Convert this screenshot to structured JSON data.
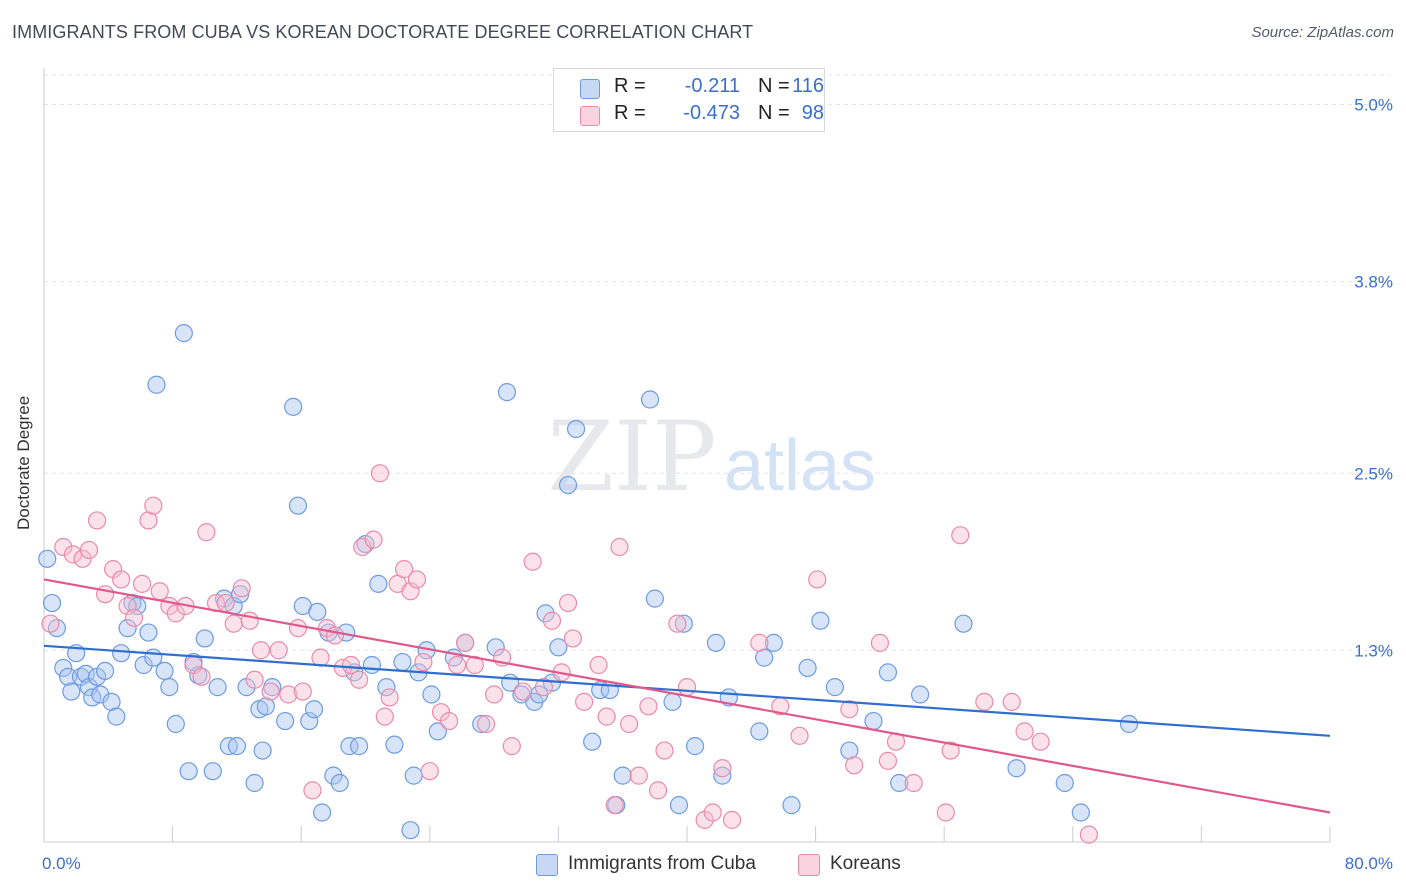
{
  "title": "IMMIGRANTS FROM CUBA VS KOREAN DOCTORATE DEGREE CORRELATION CHART",
  "source": "Source: ZipAtlas.com",
  "watermark": {
    "zip": "ZIP",
    "atlas": "atlas"
  },
  "legend": {
    "rows": [
      {
        "r_label": "R =",
        "r_value": "-0.211",
        "n_label": "N =",
        "n_value": "116",
        "color": "#a9c4f0",
        "edge": "#6d9be0"
      },
      {
        "r_label": "R =",
        "r_value": "-0.473",
        "n_label": "N =",
        "n_value": "98",
        "color": "#f6bfd0",
        "edge": "#e98aaa"
      }
    ]
  },
  "bottom_legend": [
    "Immigrants from Cuba",
    "Koreans"
  ],
  "chart_data": {
    "type": "scatter",
    "xlabel": "",
    "ylabel": "Doctorate Degree",
    "xlim": [
      0,
      80
    ],
    "ylim": [
      0,
      5.2
    ],
    "x_tick_labels": [
      "0.0%",
      "80.0%"
    ],
    "y_ticks": [
      1.3,
      2.5,
      3.8,
      5.0
    ],
    "y_tick_labels": [
      "1.3%",
      "2.5%",
      "3.8%",
      "5.0%"
    ],
    "grid": "horizontal dashed",
    "legend_placement": "top-center",
    "series": [
      {
        "name": "Immigrants from Cuba",
        "color": "#6d9be0",
        "fill": "#a9c4f0",
        "trend_color": "#2f6fce",
        "trend": {
          "x0": 0,
          "y0": 1.33,
          "x1": 80,
          "y1": 0.72
        },
        "points": [
          [
            0.2,
            1.92
          ],
          [
            0.5,
            1.62
          ],
          [
            0.8,
            1.45
          ],
          [
            1.2,
            1.18
          ],
          [
            1.5,
            1.12
          ],
          [
            1.7,
            1.02
          ],
          [
            2.0,
            1.28
          ],
          [
            2.3,
            1.12
          ],
          [
            2.6,
            1.14
          ],
          [
            2.8,
            1.05
          ],
          [
            3.0,
            0.98
          ],
          [
            3.3,
            1.12
          ],
          [
            3.5,
            1.0
          ],
          [
            3.8,
            1.16
          ],
          [
            4.2,
            0.95
          ],
          [
            4.5,
            0.85
          ],
          [
            4.8,
            1.28
          ],
          [
            5.2,
            1.45
          ],
          [
            5.5,
            1.62
          ],
          [
            5.8,
            1.6
          ],
          [
            6.2,
            1.2
          ],
          [
            6.5,
            1.42
          ],
          [
            6.8,
            1.25
          ],
          [
            7.0,
            3.1
          ],
          [
            7.5,
            1.16
          ],
          [
            7.8,
            1.05
          ],
          [
            8.2,
            0.8
          ],
          [
            8.7,
            3.45
          ],
          [
            9.0,
            0.48
          ],
          [
            9.3,
            1.22
          ],
          [
            9.6,
            1.13
          ],
          [
            10.0,
            1.38
          ],
          [
            10.5,
            0.48
          ],
          [
            10.8,
            1.05
          ],
          [
            11.2,
            1.65
          ],
          [
            11.5,
            0.65
          ],
          [
            11.8,
            1.6
          ],
          [
            12.2,
            1.68
          ],
          [
            12.0,
            0.65
          ],
          [
            12.6,
            1.05
          ],
          [
            13.1,
            0.4
          ],
          [
            13.4,
            0.9
          ],
          [
            13.6,
            0.62
          ],
          [
            13.8,
            0.92
          ],
          [
            14.2,
            1.05
          ],
          [
            15.0,
            0.82
          ],
          [
            15.5,
            2.95
          ],
          [
            15.8,
            2.28
          ],
          [
            16.1,
            1.6
          ],
          [
            16.5,
            0.82
          ],
          [
            16.8,
            0.9
          ],
          [
            17.0,
            1.56
          ],
          [
            17.3,
            0.2
          ],
          [
            17.7,
            1.42
          ],
          [
            18.0,
            0.45
          ],
          [
            18.4,
            0.4
          ],
          [
            18.8,
            1.42
          ],
          [
            19.0,
            0.65
          ],
          [
            19.3,
            1.15
          ],
          [
            19.6,
            0.65
          ],
          [
            20.0,
            2.02
          ],
          [
            20.4,
            1.2
          ],
          [
            20.8,
            1.75
          ],
          [
            21.3,
            1.05
          ],
          [
            21.8,
            0.66
          ],
          [
            22.3,
            1.22
          ],
          [
            22.8,
            0.08
          ],
          [
            23.0,
            0.45
          ],
          [
            23.3,
            1.15
          ],
          [
            23.8,
            1.3
          ],
          [
            24.1,
            1.0
          ],
          [
            24.5,
            0.75
          ],
          [
            25.5,
            1.25
          ],
          [
            26.2,
            1.35
          ],
          [
            27.2,
            0.8
          ],
          [
            28.1,
            1.32
          ],
          [
            28.8,
            3.05
          ],
          [
            29.0,
            1.08
          ],
          [
            29.7,
            1.0
          ],
          [
            30.5,
            0.95
          ],
          [
            30.8,
            1.0
          ],
          [
            31.2,
            1.55
          ],
          [
            31.6,
            1.08
          ],
          [
            32.0,
            1.32
          ],
          [
            32.6,
            2.42
          ],
          [
            33.1,
            2.8
          ],
          [
            34.1,
            0.68
          ],
          [
            34.6,
            1.03
          ],
          [
            35.2,
            1.03
          ],
          [
            35.6,
            0.25
          ],
          [
            36.0,
            0.45
          ],
          [
            37.7,
            3.0
          ],
          [
            38.0,
            1.65
          ],
          [
            39.1,
            0.95
          ],
          [
            39.5,
            0.25
          ],
          [
            39.8,
            1.48
          ],
          [
            40.5,
            0.65
          ],
          [
            41.8,
            1.35
          ],
          [
            42.2,
            0.45
          ],
          [
            42.6,
            0.98
          ],
          [
            44.5,
            0.75
          ],
          [
            44.8,
            1.25
          ],
          [
            45.4,
            1.35
          ],
          [
            46.5,
            0.25
          ],
          [
            47.5,
            1.18
          ],
          [
            48.3,
            1.5
          ],
          [
            49.2,
            1.05
          ],
          [
            50.1,
            0.62
          ],
          [
            51.6,
            0.82
          ],
          [
            52.5,
            1.15
          ],
          [
            53.2,
            0.4
          ],
          [
            54.5,
            1.0
          ],
          [
            57.2,
            1.48
          ],
          [
            60.5,
            0.5
          ],
          [
            63.5,
            0.4
          ],
          [
            64.5,
            0.2
          ],
          [
            67.5,
            0.8
          ]
        ]
      },
      {
        "name": "Koreans",
        "color": "#e98aaa",
        "fill": "#f6bfd0",
        "trend_color": "#e0598a",
        "trend": {
          "x0": 0,
          "y0": 1.78,
          "x1": 80,
          "y1": 0.2
        },
        "points": [
          [
            0.4,
            1.48
          ],
          [
            1.2,
            2.0
          ],
          [
            1.8,
            1.95
          ],
          [
            2.4,
            1.92
          ],
          [
            2.8,
            1.98
          ],
          [
            3.3,
            2.18
          ],
          [
            3.8,
            1.68
          ],
          [
            4.3,
            1.85
          ],
          [
            4.8,
            1.78
          ],
          [
            5.2,
            1.6
          ],
          [
            5.6,
            1.52
          ],
          [
            6.1,
            1.75
          ],
          [
            6.5,
            2.18
          ],
          [
            6.8,
            2.28
          ],
          [
            7.2,
            1.7
          ],
          [
            7.8,
            1.6
          ],
          [
            8.2,
            1.55
          ],
          [
            8.8,
            1.6
          ],
          [
            9.3,
            1.2
          ],
          [
            9.8,
            1.12
          ],
          [
            10.1,
            2.1
          ],
          [
            10.7,
            1.62
          ],
          [
            11.3,
            1.62
          ],
          [
            11.8,
            1.48
          ],
          [
            12.3,
            1.72
          ],
          [
            12.8,
            1.5
          ],
          [
            13.1,
            1.1
          ],
          [
            13.5,
            1.3
          ],
          [
            14.1,
            1.02
          ],
          [
            14.6,
            1.3
          ],
          [
            15.2,
            1.0
          ],
          [
            15.8,
            1.45
          ],
          [
            16.1,
            1.02
          ],
          [
            16.7,
            0.35
          ],
          [
            17.2,
            1.25
          ],
          [
            17.6,
            1.45
          ],
          [
            18.1,
            1.4
          ],
          [
            18.6,
            1.18
          ],
          [
            19.1,
            1.2
          ],
          [
            19.6,
            1.1
          ],
          [
            19.8,
            2.0
          ],
          [
            20.5,
            2.05
          ],
          [
            20.9,
            2.5
          ],
          [
            21.2,
            0.85
          ],
          [
            21.5,
            0.98
          ],
          [
            22.0,
            1.75
          ],
          [
            22.4,
            1.85
          ],
          [
            22.8,
            1.7
          ],
          [
            23.2,
            1.78
          ],
          [
            23.6,
            1.22
          ],
          [
            24.0,
            0.48
          ],
          [
            24.7,
            0.88
          ],
          [
            25.2,
            0.82
          ],
          [
            25.7,
            1.2
          ],
          [
            26.2,
            1.35
          ],
          [
            26.8,
            1.2
          ],
          [
            27.5,
            0.8
          ],
          [
            28.0,
            1.0
          ],
          [
            28.5,
            1.25
          ],
          [
            29.1,
            0.65
          ],
          [
            29.8,
            1.02
          ],
          [
            30.4,
            1.9
          ],
          [
            31.1,
            1.05
          ],
          [
            31.6,
            1.5
          ],
          [
            32.2,
            1.15
          ],
          [
            32.6,
            1.62
          ],
          [
            32.9,
            1.38
          ],
          [
            33.6,
            0.95
          ],
          [
            34.5,
            1.2
          ],
          [
            35.0,
            0.85
          ],
          [
            35.5,
            0.25
          ],
          [
            35.8,
            2.0
          ],
          [
            36.4,
            0.8
          ],
          [
            37.0,
            0.45
          ],
          [
            37.6,
            0.92
          ],
          [
            38.2,
            0.35
          ],
          [
            38.6,
            0.62
          ],
          [
            39.4,
            1.48
          ],
          [
            40.0,
            1.05
          ],
          [
            41.1,
            0.15
          ],
          [
            41.6,
            0.2
          ],
          [
            42.2,
            0.5
          ],
          [
            42.8,
            0.15
          ],
          [
            44.5,
            1.35
          ],
          [
            45.8,
            0.92
          ],
          [
            47.0,
            0.72
          ],
          [
            48.1,
            1.78
          ],
          [
            50.1,
            0.9
          ],
          [
            50.4,
            0.52
          ],
          [
            52.0,
            1.35
          ],
          [
            52.5,
            0.55
          ],
          [
            53.0,
            0.68
          ],
          [
            54.1,
            0.4
          ],
          [
            56.1,
            0.2
          ],
          [
            56.4,
            0.62
          ],
          [
            57.0,
            2.08
          ],
          [
            58.5,
            0.95
          ],
          [
            60.2,
            0.95
          ],
          [
            61.0,
            0.75
          ],
          [
            62.0,
            0.68
          ],
          [
            65.0,
            0.05
          ]
        ]
      }
    ]
  }
}
